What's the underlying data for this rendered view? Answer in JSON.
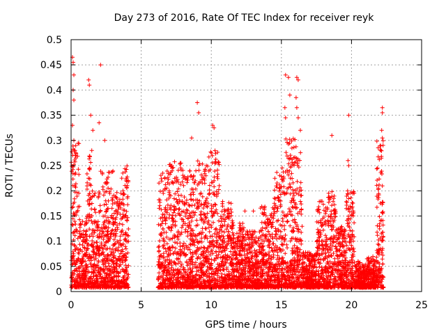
{
  "chart_data": {
    "type": "scatter",
    "title": "Day 273 of 2016, Rate Of TEC Index for receiver reyk",
    "xlabel": "GPS time / hours",
    "ylabel": "ROTI / TECUs",
    "xlim": [
      0,
      25
    ],
    "ylim": [
      0,
      0.5
    ],
    "grid": true,
    "marker": "+",
    "series_color": "#ff0000",
    "xticks": [
      0,
      5,
      10,
      15,
      20,
      25
    ],
    "xtick_labels": [
      "0",
      "5",
      "10",
      "15",
      "20",
      "25"
    ],
    "yticks": [
      0,
      0.05,
      0.1,
      0.15,
      0.2,
      0.25,
      0.3,
      0.35,
      0.4,
      0.45,
      0.5
    ],
    "ytick_labels": [
      "0",
      "0.05",
      "0.1",
      "0.15",
      "0.2",
      "0.25",
      "0.3",
      "0.35",
      "0.4",
      "0.45",
      "0.5"
    ],
    "outliers": [
      [
        0.1,
        0.465
      ],
      [
        0.15,
        0.455
      ],
      [
        0.2,
        0.43
      ],
      [
        0.15,
        0.4
      ],
      [
        0.2,
        0.38
      ],
      [
        0.1,
        0.33
      ],
      [
        0.2,
        0.3
      ],
      [
        0.3,
        0.27
      ],
      [
        1.25,
        0.42
      ],
      [
        1.3,
        0.41
      ],
      [
        2.1,
        0.45
      ],
      [
        1.4,
        0.35
      ],
      [
        1.55,
        0.32
      ],
      [
        2.0,
        0.335
      ],
      [
        2.4,
        0.3
      ],
      [
        9.0,
        0.375
      ],
      [
        9.1,
        0.355
      ],
      [
        8.6,
        0.305
      ],
      [
        10.1,
        0.33
      ],
      [
        10.2,
        0.325
      ],
      [
        15.3,
        0.43
      ],
      [
        15.5,
        0.425
      ],
      [
        15.6,
        0.39
      ],
      [
        16.1,
        0.425
      ],
      [
        16.2,
        0.42
      ],
      [
        16.05,
        0.385
      ],
      [
        16.1,
        0.365
      ],
      [
        15.3,
        0.345
      ],
      [
        15.25,
        0.365
      ],
      [
        18.6,
        0.31
      ],
      [
        19.8,
        0.35
      ],
      [
        19.75,
        0.26
      ],
      [
        19.8,
        0.25
      ],
      [
        22.2,
        0.365
      ],
      [
        22.2,
        0.355
      ],
      [
        22.15,
        0.32
      ],
      [
        22.2,
        0.305
      ],
      [
        12.4,
        0.16
      ],
      [
        13.0,
        0.16
      ],
      [
        14.5,
        0.175
      ],
      [
        16.2,
        0.345
      ],
      [
        16.35,
        0.32
      ]
    ],
    "activity_blocks": [
      {
        "x": [
          0.0,
          0.6
        ],
        "peak": 0.3
      },
      {
        "x": [
          0.6,
          1.1
        ],
        "peak": 0.14
      },
      {
        "x": [
          1.1,
          1.5
        ],
        "peak": 0.28
      },
      {
        "x": [
          1.5,
          2.1
        ],
        "peak": 0.2
      },
      {
        "x": [
          2.1,
          3.0
        ],
        "peak": 0.24
      },
      {
        "x": [
          3.0,
          3.6
        ],
        "peak": 0.2
      },
      {
        "x": [
          3.6,
          4.1
        ],
        "peak": 0.25
      },
      {
        "x": [
          6.2,
          7.0
        ],
        "peak": 0.24
      },
      {
        "x": [
          7.0,
          8.0
        ],
        "peak": 0.26
      },
      {
        "x": [
          8.0,
          9.0
        ],
        "peak": 0.24
      },
      {
        "x": [
          9.0,
          9.8
        ],
        "peak": 0.26
      },
      {
        "x": [
          9.8,
          10.6
        ],
        "peak": 0.28
      },
      {
        "x": [
          10.6,
          11.5
        ],
        "peak": 0.18
      },
      {
        "x": [
          11.5,
          12.5
        ],
        "peak": 0.14
      },
      {
        "x": [
          12.5,
          13.5
        ],
        "peak": 0.12
      },
      {
        "x": [
          13.5,
          14.5
        ],
        "peak": 0.17
      },
      {
        "x": [
          14.5,
          15.3
        ],
        "peak": 0.25
      },
      {
        "x": [
          15.3,
          16.1
        ],
        "peak": 0.31
      },
      {
        "x": [
          16.1,
          16.5
        ],
        "peak": 0.28
      },
      {
        "x": [
          16.5,
          17.5
        ],
        "peak": 0.08
      },
      {
        "x": [
          17.5,
          18.3
        ],
        "peak": 0.18
      },
      {
        "x": [
          18.3,
          18.9
        ],
        "peak": 0.2
      },
      {
        "x": [
          18.9,
          19.6
        ],
        "peak": 0.13
      },
      {
        "x": [
          19.6,
          20.2
        ],
        "peak": 0.2
      },
      {
        "x": [
          20.2,
          21.0
        ],
        "peak": 0.06
      },
      {
        "x": [
          21.0,
          21.8
        ],
        "peak": 0.07
      },
      {
        "x": [
          21.8,
          22.3
        ],
        "peak": 0.3
      }
    ]
  }
}
